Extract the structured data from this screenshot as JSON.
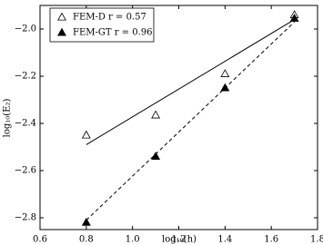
{
  "chart_data": {
    "type": "scatter",
    "x_label": "log₁₀(h)",
    "y_label": "log₁₀(E₂)",
    "xlim": [
      0.6,
      1.8
    ],
    "ylim": [
      -2.85,
      -1.9
    ],
    "xticks": [
      0.6,
      0.8,
      {
        "value": 1,
        "label": "1.0"
      },
      1.2,
      1.4,
      1.6,
      1.8
    ],
    "yticks": [
      {
        "value": -2.8,
        "label": "−2.8"
      },
      {
        "value": -2.6,
        "label": "−2.6"
      },
      {
        "value": -2.4,
        "label": "−2.4"
      },
      {
        "value": -2.2,
        "label": "−2.2"
      },
      {
        "value": -2,
        "label": "−2.0"
      }
    ],
    "legend": "upper left",
    "series": [
      {
        "name": "FEM-D r = 0.57",
        "color": "#000000",
        "marker": "open",
        "linestyle": "solid",
        "x": [
          0.8,
          1.1,
          1.4,
          1.7
        ],
        "values": [
          -2.45,
          -2.365,
          -2.19,
          -1.94
        ],
        "fit": {
          "x": [
            0.8,
            1.7
          ],
          "values": [
            -2.49,
            -1.96
          ]
        }
      },
      {
        "name": "FEM-GT r = 0.96",
        "color": "#000000",
        "marker": "filled",
        "linestyle": "dashed",
        "x": [
          0.8,
          1.1,
          1.4,
          1.7
        ],
        "values": [
          -2.82,
          -2.54,
          -2.25,
          -1.955
        ],
        "fit": {
          "x": [
            0.8,
            1.7
          ],
          "values": [
            -2.81,
            -1.97
          ]
        }
      }
    ]
  }
}
